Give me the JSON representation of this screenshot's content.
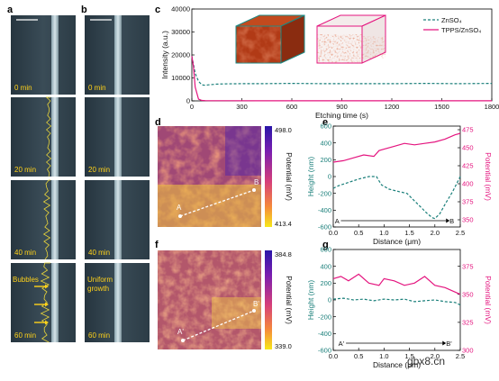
{
  "panel_letters": [
    "a",
    "b",
    "c",
    "d",
    "e",
    "f",
    "g"
  ],
  "panel_a": {
    "time_labels": [
      "0 min",
      "20 min",
      "40 min",
      "60 min"
    ],
    "annotation": "Bubbles"
  },
  "panel_b": {
    "time_labels": [
      "0 min",
      "20 min",
      "40 min",
      "60 min"
    ],
    "annotation_line1": "Uniform",
    "annotation_line2": "growth"
  },
  "chart_data": [
    {
      "panel": "c",
      "type": "line",
      "xlabel": "Etching time (s)",
      "ylabel": "Intensity (a.u.)",
      "xlim": [
        0,
        1800
      ],
      "ylim": [
        0,
        40000
      ],
      "x_ticks": [
        "0",
        "300",
        "600",
        "900",
        "1200",
        "1500",
        "1800"
      ],
      "y_ticks": [
        "0",
        "10000",
        "20000",
        "30000",
        "40000"
      ],
      "legend_position": "top-right",
      "series": [
        {
          "name": "ZnSO₄",
          "color": "#1a7f7a",
          "style": "dashed",
          "x": [
            0,
            20,
            40,
            60,
            80,
            100,
            150,
            200,
            300,
            400,
            600,
            800,
            1000,
            1200,
            1400,
            1600,
            1800
          ],
          "y": [
            19500,
            12000,
            8500,
            7000,
            6800,
            7000,
            7300,
            7400,
            7500,
            7500,
            7600,
            7500,
            7500,
            7500,
            7600,
            7500,
            7600
          ]
        },
        {
          "name": "TPPS/ZnSO₄",
          "color": "#e4157f",
          "style": "solid",
          "x": [
            0,
            10,
            20,
            40,
            60,
            80,
            100,
            200,
            400,
            600,
            800,
            1000,
            1200,
            1400,
            1600,
            1800
          ],
          "y": [
            19500,
            15000,
            6000,
            800,
            200,
            100,
            80,
            60,
            50,
            50,
            50,
            50,
            50,
            50,
            50,
            50
          ]
        }
      ]
    },
    {
      "panel": "e",
      "type": "line",
      "xlabel": "Distance (μm)",
      "ylabel": "Height (nm)",
      "ylabel_right": "Potential (mV)",
      "xlim": [
        0,
        2.5
      ],
      "ylim": [
        -600,
        600
      ],
      "ylim_right": [
        340,
        480
      ],
      "x_ticks": [
        "0.0",
        "0.5",
        "1.0",
        "1.5",
        "2.0",
        "2.5"
      ],
      "y_ticks": [
        "-600",
        "-400",
        "-200",
        "0",
        "200",
        "400",
        "600"
      ],
      "y_ticks_right": [
        "350",
        "375",
        "400",
        "425",
        "450",
        "475"
      ],
      "marker_start": "A",
      "marker_end": "B",
      "series": [
        {
          "name": "Height",
          "color": "#1a7f7a",
          "style": "dashed",
          "axis": "left",
          "x": [
            0.0,
            0.1,
            0.3,
            0.5,
            0.7,
            0.85,
            0.95,
            1.1,
            1.3,
            1.45,
            1.55,
            1.7,
            1.85,
            1.95,
            2.0,
            2.1,
            2.2,
            2.35,
            2.5
          ],
          "y": [
            -140,
            -110,
            -70,
            -30,
            0,
            0,
            -100,
            -150,
            -180,
            -200,
            -260,
            -350,
            -440,
            -490,
            -500,
            -440,
            -330,
            -180,
            0
          ]
        },
        {
          "name": "Potential",
          "color": "#e4157f",
          "style": "solid",
          "axis": "right",
          "x": [
            0.0,
            0.2,
            0.4,
            0.6,
            0.8,
            0.9,
            1.0,
            1.2,
            1.4,
            1.6,
            1.8,
            2.0,
            2.2,
            2.4,
            2.5
          ],
          "y": [
            430,
            432,
            436,
            440,
            438,
            446,
            448,
            452,
            456,
            454,
            456,
            458,
            462,
            468,
            470
          ]
        }
      ]
    },
    {
      "panel": "g",
      "type": "line",
      "xlabel": "Distance (μm)",
      "ylabel": "Height (nm)",
      "ylabel_right": "Potential (mV)",
      "xlim": [
        0,
        2.5
      ],
      "ylim": [
        -600,
        600
      ],
      "ylim_right": [
        300,
        390
      ],
      "x_ticks": [
        "0.0",
        "0.5",
        "1.0",
        "1.5",
        "2.0",
        "2.5"
      ],
      "y_ticks": [
        "-600",
        "-400",
        "-200",
        "0",
        "200",
        "400",
        "600"
      ],
      "y_ticks_right": [
        "300",
        "325",
        "350",
        "375"
      ],
      "marker_start": "A'",
      "marker_end": "B'",
      "series": [
        {
          "name": "Height",
          "color": "#1a7f7a",
          "style": "dashed",
          "axis": "left",
          "x": [
            0.0,
            0.2,
            0.4,
            0.6,
            0.8,
            1.0,
            1.2,
            1.4,
            1.6,
            1.8,
            2.0,
            2.2,
            2.4,
            2.5
          ],
          "y": [
            10,
            20,
            0,
            10,
            -10,
            10,
            0,
            10,
            -20,
            -10,
            0,
            -20,
            -30,
            -60
          ]
        },
        {
          "name": "Potential",
          "color": "#e4157f",
          "style": "solid",
          "axis": "right",
          "x": [
            0.0,
            0.15,
            0.3,
            0.5,
            0.7,
            0.9,
            1.0,
            1.2,
            1.4,
            1.6,
            1.8,
            2.0,
            2.2,
            2.4,
            2.5
          ],
          "y": [
            364,
            366,
            362,
            368,
            360,
            358,
            364,
            362,
            358,
            360,
            366,
            358,
            356,
            352,
            350
          ]
        }
      ]
    }
  ],
  "map_d": {
    "colorbar_max": "498.0",
    "colorbar_min": "413.4",
    "colorbar_label": "Potential (mV)",
    "line_start": "A",
    "line_end": "B"
  },
  "map_f": {
    "colorbar_max": "384.8",
    "colorbar_min": "339.0",
    "colorbar_label": "Potential (mV)",
    "line_start": "A'",
    "line_end": "B'"
  },
  "watermark": "gbx8.cn"
}
